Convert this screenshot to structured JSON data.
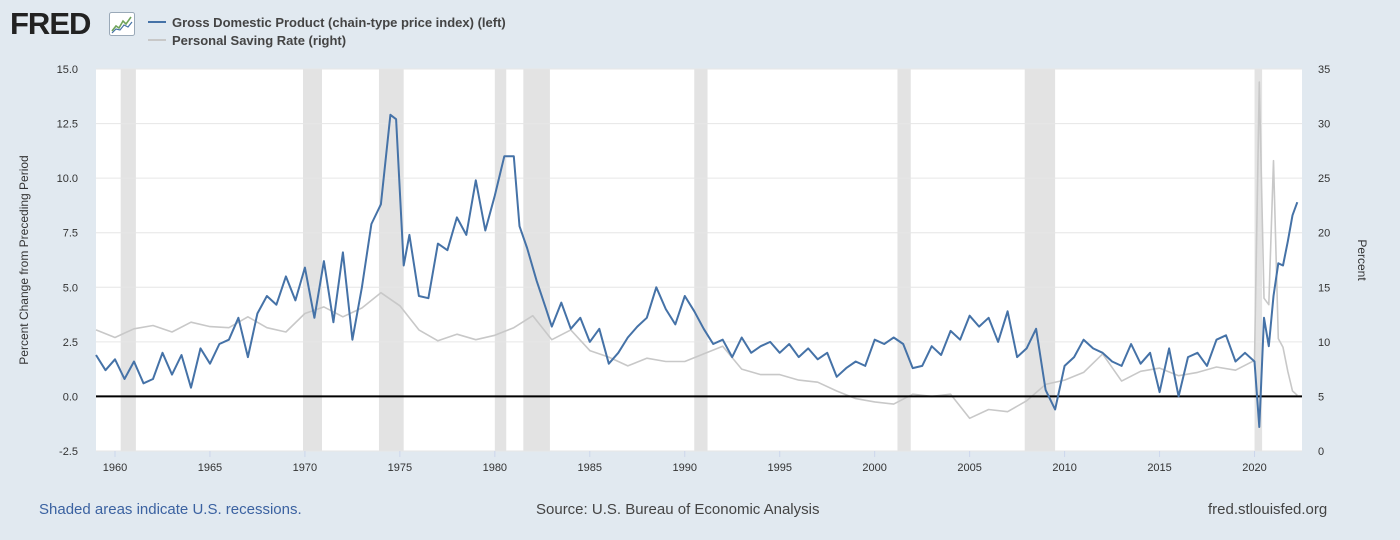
{
  "header": {
    "logo_text": "FRED",
    "logo_icon": "sparkline-chart-icon"
  },
  "colors": {
    "gdp": "#4572a7",
    "saving": "#c8c8c8",
    "recession": "#e3e3e3",
    "zero_line": "#000000",
    "background": "#e1e9f0"
  },
  "footer": {
    "note": "Shaded areas indicate U.S. recessions.",
    "source": "Source: U.S. Bureau of Economic Analysis",
    "url": "fred.stlouisfed.org"
  },
  "chart_data": {
    "type": "line",
    "title": "",
    "x_range": [
      1959,
      2022.5
    ],
    "x_ticks": [
      1960,
      1965,
      1970,
      1975,
      1980,
      1985,
      1990,
      1995,
      2000,
      2005,
      2010,
      2015,
      2020
    ],
    "y_left": {
      "label": "Percent Change from Preceding Period",
      "range": [
        -2.5,
        15
      ],
      "ticks": [
        "-2.5",
        "0.0",
        "2.5",
        "5.0",
        "7.5",
        "10.0",
        "12.5",
        "15.0"
      ]
    },
    "y_right": {
      "label": "Percent",
      "range": [
        0,
        35
      ],
      "ticks": [
        "0",
        "5",
        "10",
        "15",
        "20",
        "25",
        "30",
        "35"
      ]
    },
    "reference_line": {
      "axis": "left",
      "value": 0
    },
    "grid": "horizontal",
    "legend_placement": "top-left",
    "recessions": [
      [
        1960.3,
        1961.1
      ],
      [
        1969.9,
        1970.9
      ],
      [
        1973.9,
        1975.2
      ],
      [
        1980.0,
        1980.6
      ],
      [
        1981.5,
        1982.9
      ],
      [
        1990.5,
        1991.2
      ],
      [
        2001.2,
        2001.9
      ],
      [
        2007.9,
        2009.5
      ],
      [
        2020.0,
        2020.4
      ]
    ],
    "series": [
      {
        "name": "Gross Domestic Product (chain-type price index) (left)",
        "axis": "left",
        "points": [
          [
            1959.0,
            1.9
          ],
          [
            1959.5,
            1.2
          ],
          [
            1960.0,
            1.7
          ],
          [
            1960.5,
            0.8
          ],
          [
            1961.0,
            1.6
          ],
          [
            1961.5,
            0.6
          ],
          [
            1962.0,
            0.8
          ],
          [
            1962.5,
            2.0
          ],
          [
            1963.0,
            1.0
          ],
          [
            1963.5,
            1.9
          ],
          [
            1964.0,
            0.4
          ],
          [
            1964.5,
            2.2
          ],
          [
            1965.0,
            1.5
          ],
          [
            1965.5,
            2.4
          ],
          [
            1966.0,
            2.6
          ],
          [
            1966.5,
            3.6
          ],
          [
            1967.0,
            1.8
          ],
          [
            1967.5,
            3.8
          ],
          [
            1968.0,
            4.6
          ],
          [
            1968.5,
            4.2
          ],
          [
            1969.0,
            5.5
          ],
          [
            1969.5,
            4.4
          ],
          [
            1970.0,
            5.9
          ],
          [
            1970.5,
            3.6
          ],
          [
            1971.0,
            6.2
          ],
          [
            1971.5,
            3.4
          ],
          [
            1972.0,
            6.6
          ],
          [
            1972.5,
            2.6
          ],
          [
            1973.0,
            5.0
          ],
          [
            1973.5,
            7.9
          ],
          [
            1974.0,
            8.8
          ],
          [
            1974.5,
            12.9
          ],
          [
            1974.8,
            12.7
          ],
          [
            1975.2,
            6.0
          ],
          [
            1975.5,
            7.4
          ],
          [
            1976.0,
            4.6
          ],
          [
            1976.5,
            4.5
          ],
          [
            1977.0,
            7.0
          ],
          [
            1977.5,
            6.7
          ],
          [
            1978.0,
            8.2
          ],
          [
            1978.5,
            7.4
          ],
          [
            1979.0,
            9.9
          ],
          [
            1979.5,
            7.6
          ],
          [
            1980.0,
            9.2
          ],
          [
            1980.5,
            11.0
          ],
          [
            1981.0,
            11.0
          ],
          [
            1981.3,
            7.8
          ],
          [
            1981.7,
            6.8
          ],
          [
            1982.2,
            5.3
          ],
          [
            1982.7,
            4.0
          ],
          [
            1983.0,
            3.2
          ],
          [
            1983.5,
            4.3
          ],
          [
            1984.0,
            3.1
          ],
          [
            1984.5,
            3.6
          ],
          [
            1985.0,
            2.5
          ],
          [
            1985.5,
            3.1
          ],
          [
            1986.0,
            1.5
          ],
          [
            1986.5,
            2.0
          ],
          [
            1987.0,
            2.7
          ],
          [
            1987.5,
            3.2
          ],
          [
            1988.0,
            3.6
          ],
          [
            1988.5,
            5.0
          ],
          [
            1989.0,
            4.0
          ],
          [
            1989.5,
            3.3
          ],
          [
            1990.0,
            4.6
          ],
          [
            1990.5,
            3.9
          ],
          [
            1991.0,
            3.1
          ],
          [
            1991.5,
            2.4
          ],
          [
            1992.0,
            2.6
          ],
          [
            1992.5,
            1.8
          ],
          [
            1993.0,
            2.7
          ],
          [
            1993.5,
            2.0
          ],
          [
            1994.0,
            2.3
          ],
          [
            1994.5,
            2.5
          ],
          [
            1995.0,
            2.0
          ],
          [
            1995.5,
            2.4
          ],
          [
            1996.0,
            1.8
          ],
          [
            1996.5,
            2.2
          ],
          [
            1997.0,
            1.7
          ],
          [
            1997.5,
            2.0
          ],
          [
            1998.0,
            0.9
          ],
          [
            1998.5,
            1.3
          ],
          [
            1999.0,
            1.6
          ],
          [
            1999.5,
            1.4
          ],
          [
            2000.0,
            2.6
          ],
          [
            2000.5,
            2.4
          ],
          [
            2001.0,
            2.7
          ],
          [
            2001.5,
            2.4
          ],
          [
            2002.0,
            1.3
          ],
          [
            2002.5,
            1.4
          ],
          [
            2003.0,
            2.3
          ],
          [
            2003.5,
            1.9
          ],
          [
            2004.0,
            3.0
          ],
          [
            2004.5,
            2.6
          ],
          [
            2005.0,
            3.7
          ],
          [
            2005.5,
            3.2
          ],
          [
            2006.0,
            3.6
          ],
          [
            2006.5,
            2.5
          ],
          [
            2007.0,
            3.9
          ],
          [
            2007.5,
            1.8
          ],
          [
            2008.0,
            2.2
          ],
          [
            2008.5,
            3.1
          ],
          [
            2009.0,
            0.3
          ],
          [
            2009.5,
            -0.6
          ],
          [
            2010.0,
            1.4
          ],
          [
            2010.5,
            1.8
          ],
          [
            2011.0,
            2.6
          ],
          [
            2011.5,
            2.2
          ],
          [
            2012.0,
            2.0
          ],
          [
            2012.5,
            1.6
          ],
          [
            2013.0,
            1.4
          ],
          [
            2013.5,
            2.4
          ],
          [
            2014.0,
            1.5
          ],
          [
            2014.5,
            2.0
          ],
          [
            2015.0,
            0.2
          ],
          [
            2015.5,
            2.2
          ],
          [
            2016.0,
            0.0
          ],
          [
            2016.5,
            1.8
          ],
          [
            2017.0,
            2.0
          ],
          [
            2017.5,
            1.4
          ],
          [
            2018.0,
            2.6
          ],
          [
            2018.5,
            2.8
          ],
          [
            2019.0,
            1.6
          ],
          [
            2019.5,
            2.0
          ],
          [
            2020.0,
            1.6
          ],
          [
            2020.25,
            -1.4
          ],
          [
            2020.5,
            3.6
          ],
          [
            2020.75,
            2.3
          ],
          [
            2021.0,
            4.6
          ],
          [
            2021.25,
            6.1
          ],
          [
            2021.5,
            6.0
          ],
          [
            2021.75,
            7.1
          ],
          [
            2022.0,
            8.3
          ],
          [
            2022.25,
            8.9
          ]
        ]
      },
      {
        "name": "Personal Saving Rate (right)",
        "axis": "right",
        "points": [
          [
            1959.0,
            11.1
          ],
          [
            1960.0,
            10.4
          ],
          [
            1961.0,
            11.2
          ],
          [
            1962.0,
            11.5
          ],
          [
            1963.0,
            10.9
          ],
          [
            1964.0,
            11.8
          ],
          [
            1965.0,
            11.4
          ],
          [
            1966.0,
            11.3
          ],
          [
            1967.0,
            12.3
          ],
          [
            1968.0,
            11.3
          ],
          [
            1969.0,
            10.9
          ],
          [
            1970.0,
            12.6
          ],
          [
            1971.0,
            13.2
          ],
          [
            1972.0,
            12.3
          ],
          [
            1973.0,
            13.1
          ],
          [
            1974.0,
            14.5
          ],
          [
            1975.0,
            13.3
          ],
          [
            1976.0,
            11.1
          ],
          [
            1977.0,
            10.1
          ],
          [
            1978.0,
            10.7
          ],
          [
            1979.0,
            10.2
          ],
          [
            1980.0,
            10.6
          ],
          [
            1981.0,
            11.3
          ],
          [
            1982.0,
            12.4
          ],
          [
            1983.0,
            10.2
          ],
          [
            1984.0,
            11.1
          ],
          [
            1985.0,
            9.2
          ],
          [
            1986.0,
            8.6
          ],
          [
            1987.0,
            7.8
          ],
          [
            1988.0,
            8.5
          ],
          [
            1989.0,
            8.2
          ],
          [
            1990.0,
            8.2
          ],
          [
            1991.0,
            8.9
          ],
          [
            1992.0,
            9.6
          ],
          [
            1993.0,
            7.5
          ],
          [
            1994.0,
            7.0
          ],
          [
            1995.0,
            7.0
          ],
          [
            1996.0,
            6.5
          ],
          [
            1997.0,
            6.3
          ],
          [
            1998.0,
            5.5
          ],
          [
            1999.0,
            4.8
          ],
          [
            2000.0,
            4.5
          ],
          [
            2001.0,
            4.3
          ],
          [
            2002.0,
            5.2
          ],
          [
            2003.0,
            5.0
          ],
          [
            2004.0,
            5.2
          ],
          [
            2005.0,
            3.0
          ],
          [
            2006.0,
            3.8
          ],
          [
            2007.0,
            3.6
          ],
          [
            2008.0,
            4.6
          ],
          [
            2009.0,
            6.1
          ],
          [
            2010.0,
            6.5
          ],
          [
            2011.0,
            7.2
          ],
          [
            2012.0,
            8.9
          ],
          [
            2013.0,
            6.4
          ],
          [
            2014.0,
            7.3
          ],
          [
            2015.0,
            7.6
          ],
          [
            2016.0,
            6.9
          ],
          [
            2017.0,
            7.2
          ],
          [
            2018.0,
            7.7
          ],
          [
            2019.0,
            7.4
          ],
          [
            2020.0,
            8.3
          ],
          [
            2020.25,
            33.8
          ],
          [
            2020.5,
            14.0
          ],
          [
            2020.75,
            13.4
          ],
          [
            2021.0,
            26.6
          ],
          [
            2021.25,
            10.3
          ],
          [
            2021.5,
            9.5
          ],
          [
            2021.75,
            7.3
          ],
          [
            2022.0,
            5.5
          ],
          [
            2022.25,
            5.1
          ]
        ]
      }
    ]
  }
}
